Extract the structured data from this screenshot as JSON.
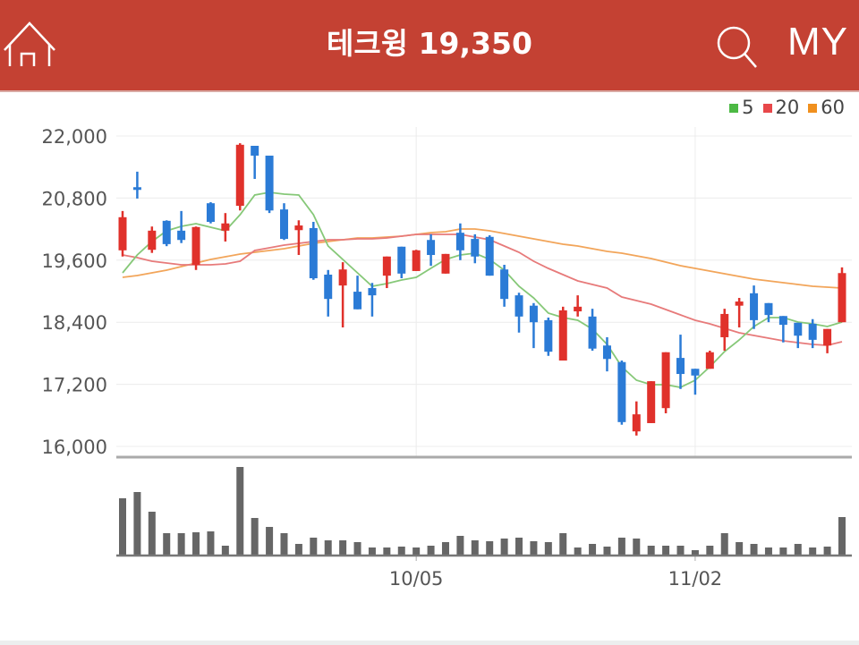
{
  "header": {
    "title": "테크윙 19,350",
    "home_icon": "home-icon",
    "search_icon": "search-icon",
    "my_label": "MY",
    "color": "#c44133"
  },
  "legend": [
    {
      "label": "5",
      "color": "#4cb944"
    },
    {
      "label": "20",
      "color": "#e8474a"
    },
    {
      "label": "60",
      "color": "#f0901e"
    }
  ],
  "chart_data": {
    "type": "candlestick",
    "ylim": [
      16000,
      22000
    ],
    "yticks": [
      "22,000",
      "20,800",
      "19,600",
      "18,400",
      "17,200",
      "16,000"
    ],
    "ytick_values": [
      22000,
      20800,
      19600,
      18400,
      17200,
      16000
    ],
    "xticks": [
      {
        "label": "10/05",
        "index": 20
      },
      {
        "label": "11/02",
        "index": 39
      }
    ],
    "grid": true,
    "legend_placement": "top-right",
    "colors": {
      "up": "#e0312b",
      "down": "#2b7bd6",
      "ma5": "#86c878",
      "ma20": "#e77a7a",
      "ma60": "#f2a55a",
      "volume": "#666666"
    },
    "ohlc": [
      [
        19790,
        20550,
        19670,
        20430
      ],
      [
        21010,
        21310,
        20790,
        20960
      ],
      [
        19800,
        20250,
        19740,
        20170
      ],
      [
        20360,
        20370,
        19870,
        19910
      ],
      [
        20170,
        20550,
        19930,
        19990
      ],
      [
        19510,
        20250,
        19410,
        20240
      ],
      [
        20700,
        20720,
        20310,
        20340
      ],
      [
        20170,
        20510,
        19960,
        20310
      ],
      [
        20650,
        21860,
        20560,
        21830
      ],
      [
        21810,
        21810,
        21170,
        21620
      ],
      [
        21620,
        21620,
        20510,
        20560
      ],
      [
        20580,
        20700,
        19990,
        20010
      ],
      [
        20180,
        20370,
        19700,
        20270
      ],
      [
        20220,
        20340,
        19220,
        19250
      ],
      [
        19320,
        19410,
        18510,
        18850
      ],
      [
        19110,
        19560,
        18300,
        19420
      ],
      [
        18990,
        19300,
        18650,
        18650
      ],
      [
        19060,
        19160,
        18510,
        18920
      ],
      [
        19300,
        19670,
        19060,
        19670
      ],
      [
        19860,
        19860,
        19250,
        19340
      ],
      [
        19390,
        19800,
        19390,
        19790
      ],
      [
        19990,
        20100,
        19490,
        19700
      ],
      [
        19340,
        19720,
        19340,
        19720
      ],
      [
        20130,
        20310,
        19600,
        19790
      ],
      [
        20010,
        20100,
        19540,
        19670
      ],
      [
        20050,
        20080,
        19300,
        19300
      ],
      [
        19420,
        19510,
        18700,
        18850
      ],
      [
        18920,
        18970,
        18200,
        18510
      ],
      [
        18720,
        18770,
        17900,
        18400
      ],
      [
        18440,
        18490,
        17750,
        17830
      ],
      [
        17660,
        18700,
        17660,
        18630
      ],
      [
        18610,
        18920,
        18510,
        18700
      ],
      [
        18510,
        18660,
        17850,
        17890
      ],
      [
        17950,
        18110,
        17450,
        17690
      ],
      [
        17630,
        17660,
        16420,
        16470
      ],
      [
        16290,
        16870,
        16210,
        16620
      ],
      [
        16450,
        17260,
        16450,
        17260
      ],
      [
        16740,
        17820,
        16640,
        17820
      ],
      [
        17710,
        18160,
        17110,
        17400
      ],
      [
        17500,
        17500,
        17000,
        17370
      ],
      [
        17500,
        17850,
        17500,
        17820
      ],
      [
        18110,
        18660,
        17850,
        18560
      ],
      [
        18720,
        18870,
        18300,
        18800
      ],
      [
        18960,
        19110,
        18270,
        18440
      ],
      [
        18770,
        18770,
        18400,
        18540
      ],
      [
        18520,
        18520,
        18010,
        18350
      ],
      [
        18390,
        18390,
        17900,
        18140
      ],
      [
        18370,
        18460,
        17900,
        18060
      ],
      [
        17950,
        18270,
        17800,
        18270
      ],
      [
        18400,
        19460,
        18400,
        19350
      ]
    ],
    "ma5": [
      19355,
      19700,
      19960,
      20167,
      20254,
      20306,
      20236,
      20167,
      20478,
      20859,
      20911,
      20876,
      20859,
      20478,
      19873,
      19614,
      19355,
      19095,
      19147,
      19216,
      19268,
      19442,
      19614,
      19700,
      19735,
      19614,
      19406,
      19095,
      18870,
      18577,
      18490,
      18438,
      18265,
      17971,
      17539,
      17280,
      17193,
      17193,
      17141,
      17280,
      17539,
      17833,
      18058,
      18317,
      18490,
      18490,
      18404,
      18369,
      18317,
      18404
    ],
    "ma20": [
      19700,
      19649,
      19580,
      19545,
      19510,
      19510,
      19510,
      19528,
      19580,
      19787,
      19839,
      19891,
      19925,
      19960,
      19994,
      19994,
      20012,
      20012,
      20029,
      20064,
      20098,
      20098,
      20098,
      20098,
      20046,
      19994,
      19873,
      19752,
      19580,
      19441,
      19320,
      19199,
      19130,
      19061,
      18888,
      18819,
      18750,
      18646,
      18542,
      18438,
      18369,
      18283,
      18196,
      18144,
      18092,
      18041,
      18006,
      17971,
      17954,
      18023
    ],
    "ma60": [
      19268,
      19303,
      19355,
      19407,
      19476,
      19545,
      19614,
      19666,
      19718,
      19752,
      19787,
      19821,
      19873,
      19925,
      19960,
      19994,
      20029,
      20029,
      20046,
      20064,
      20098,
      20133,
      20150,
      20202,
      20202,
      20167,
      20115,
      20064,
      20012,
      19960,
      19908,
      19873,
      19821,
      19770,
      19735,
      19683,
      19631,
      19562,
      19493,
      19441,
      19389,
      19337,
      19285,
      19234,
      19199,
      19164,
      19130,
      19095,
      19078,
      19061
    ],
    "volume": [
      64,
      71,
      49,
      25,
      25,
      26,
      27,
      11,
      99,
      42,
      32,
      25,
      13,
      20,
      17,
      17,
      15,
      9,
      9,
      10,
      9,
      11,
      15,
      22,
      17,
      16,
      19,
      20,
      16,
      15,
      25,
      9,
      13,
      10,
      20,
      19,
      11,
      11,
      11,
      6,
      11,
      25,
      15,
      13,
      9,
      9,
      13,
      9,
      10,
      43
    ]
  }
}
